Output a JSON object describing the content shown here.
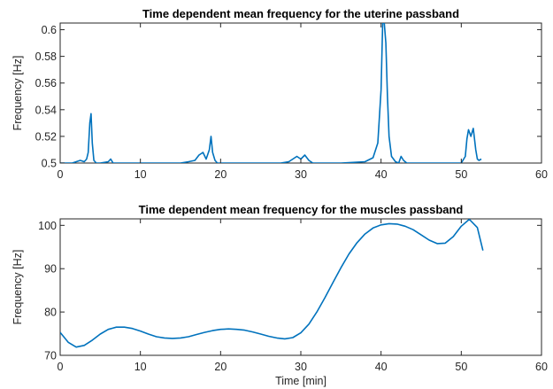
{
  "chart_data": [
    {
      "type": "line",
      "title": "Time  dependent mean frequency for the uterine passband",
      "xlabel": "",
      "ylabel": "Frequency [Hz]",
      "xlim": [
        0,
        60
      ],
      "ylim": [
        0.5,
        0.605
      ],
      "xticks": [
        "0",
        "10",
        "20",
        "30",
        "40",
        "50",
        "60"
      ],
      "yticks": [
        "0.5",
        "0.52",
        "0.54",
        "0.56",
        "0.58",
        "0.6"
      ],
      "grid": false,
      "series": [
        {
          "color": "#0072BD",
          "x": [
            0,
            1.5,
            2.5,
            3.0,
            3.3,
            3.5,
            3.7,
            3.85,
            4.0,
            4.2,
            4.5,
            5.0,
            6.0,
            6.3,
            6.6,
            7.0,
            9.0,
            12.0,
            15.0,
            16.0,
            16.8,
            17.3,
            17.8,
            18.2,
            18.6,
            18.8,
            19.0,
            19.3,
            19.6,
            20.2,
            22.0,
            25.0,
            27.5,
            28.5,
            29.5,
            30.0,
            30.5,
            31.0,
            31.5,
            32.5,
            35.0,
            38.0,
            39.0,
            39.6,
            40.0,
            40.2,
            40.4,
            40.6,
            40.8,
            41.0,
            41.3,
            41.8,
            42.2,
            42.5,
            42.8,
            43.2,
            45.0,
            48.0,
            50.0,
            50.5,
            50.7,
            50.9,
            51.2,
            51.5,
            51.8,
            52.0,
            52.2,
            52.5
          ],
          "y": [
            0.5,
            0.5,
            0.502,
            0.501,
            0.503,
            0.508,
            0.53,
            0.537,
            0.515,
            0.502,
            0.5,
            0.5,
            0.501,
            0.503,
            0.5,
            0.5,
            0.5,
            0.5,
            0.5,
            0.501,
            0.502,
            0.506,
            0.508,
            0.503,
            0.51,
            0.52,
            0.508,
            0.502,
            0.5,
            0.5,
            0.5,
            0.5,
            0.5,
            0.501,
            0.505,
            0.503,
            0.506,
            0.502,
            0.5,
            0.5,
            0.5,
            0.501,
            0.504,
            0.515,
            0.555,
            0.605,
            0.605,
            0.59,
            0.55,
            0.52,
            0.505,
            0.501,
            0.5,
            0.505,
            0.502,
            0.5,
            0.5,
            0.5,
            0.5,
            0.505,
            0.518,
            0.525,
            0.52,
            0.526,
            0.51,
            0.503,
            0.502,
            0.503
          ]
        }
      ]
    },
    {
      "type": "line",
      "title": "Time  dependent mean frequency for the muscles passband",
      "xlabel": "Time [min]",
      "ylabel": "Frequency [Hz]",
      "xlim": [
        0,
        60
      ],
      "ylim": [
        70,
        101.5
      ],
      "xticks": [
        "0",
        "10",
        "20",
        "30",
        "40",
        "50",
        "60"
      ],
      "yticks": [
        "70",
        "80",
        "90",
        "100"
      ],
      "grid": false,
      "series": [
        {
          "color": "#0072BD",
          "x": [
            0,
            1,
            2,
            3,
            4,
            5,
            6,
            7,
            8,
            9,
            10,
            11,
            12,
            13,
            14,
            15,
            16,
            17,
            18,
            19,
            20,
            21,
            22,
            23,
            24,
            25,
            26,
            27,
            28,
            29,
            30,
            31,
            32,
            33,
            34,
            35,
            36,
            37,
            38,
            39,
            40,
            41,
            42,
            43,
            44,
            45,
            46,
            47,
            48,
            49,
            50,
            51,
            52,
            52.7
          ],
          "y": [
            75.3,
            73.0,
            71.9,
            72.3,
            73.5,
            74.9,
            76.0,
            76.5,
            76.5,
            76.2,
            75.6,
            74.9,
            74.3,
            74.0,
            73.9,
            74.0,
            74.3,
            74.8,
            75.3,
            75.7,
            76.0,
            76.1,
            76.0,
            75.8,
            75.4,
            74.9,
            74.4,
            74.0,
            73.8,
            74.1,
            75.2,
            77.2,
            80.0,
            83.3,
            86.8,
            90.2,
            93.4,
            96.0,
            98.0,
            99.4,
            100.1,
            100.4,
            100.3,
            99.8,
            99.0,
            97.8,
            96.6,
            95.8,
            95.9,
            97.4,
            99.8,
            101.4,
            99.5,
            94.2
          ]
        }
      ]
    }
  ]
}
